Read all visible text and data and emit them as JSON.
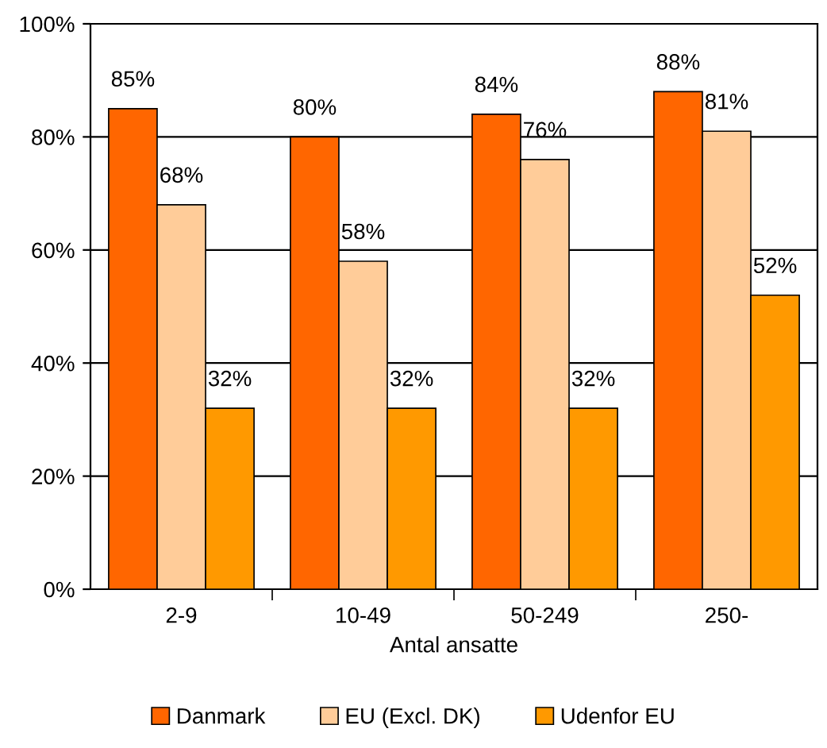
{
  "chart_data": {
    "type": "bar",
    "xlabel": "Antal ansatte",
    "categories": [
      "2-9",
      "10-49",
      "50-249",
      "250-"
    ],
    "series": [
      {
        "name": "Danmark",
        "color": "#ff6600",
        "values": [
          85,
          80,
          84,
          88
        ],
        "value_labels": [
          "85%",
          "80%",
          "84%",
          "88%"
        ]
      },
      {
        "name": "EU (Excl. DK)",
        "color": "#ffcc99",
        "values": [
          68,
          58,
          76,
          81
        ],
        "value_labels": [
          "68%",
          "58%",
          "76%",
          "81%"
        ]
      },
      {
        "name": "Udenfor EU",
        "color": "#ff9900",
        "values": [
          32,
          32,
          32,
          52
        ],
        "value_labels": [
          "32%",
          "32%",
          "32%",
          "52%"
        ]
      }
    ],
    "ylim": [
      0,
      100
    ],
    "yticks": [
      {
        "value": 0,
        "label": "0%"
      },
      {
        "value": 20,
        "label": "20%"
      },
      {
        "value": 40,
        "label": "40%"
      },
      {
        "value": 60,
        "label": "60%"
      },
      {
        "value": 80,
        "label": "80%"
      },
      {
        "value": 100,
        "label": "100%"
      }
    ],
    "grid": "y",
    "legend": "bottom"
  }
}
